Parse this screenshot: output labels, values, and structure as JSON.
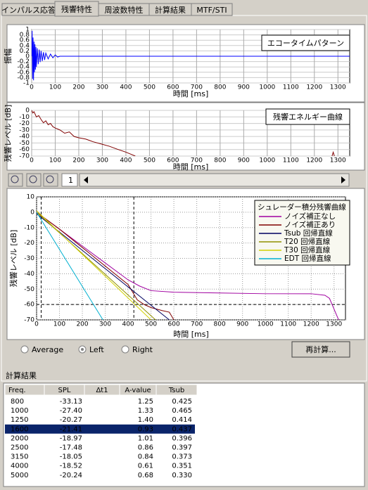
{
  "tabs": [
    "インパルス応答",
    "残響特性",
    "周波数特性",
    "計算結果",
    "MTF/STI"
  ],
  "chart_data": [
    {
      "type": "line",
      "title": "エコータイムパターン",
      "xlabel": "時間 [ms]",
      "ylabel": "振幅",
      "xlim": [
        0,
        1350
      ],
      "xticks": [
        0,
        100,
        200,
        300,
        400,
        500,
        600,
        700,
        800,
        900,
        1000,
        1100,
        1200,
        1300
      ],
      "ylim": [
        -1,
        1
      ],
      "yticks": [
        1,
        0.8,
        0.6,
        0.4,
        0.2,
        0,
        -0.2,
        -0.4,
        -0.6,
        -0.8,
        -1
      ],
      "grid": true,
      "series": [
        {
          "color": "#0000ff",
          "x": [
            0,
            2,
            4,
            6,
            8,
            10,
            12,
            14,
            16,
            18,
            20,
            24,
            28,
            32,
            36,
            40,
            45,
            50,
            55,
            60,
            70,
            80,
            90,
            100,
            110,
            120,
            1350
          ],
          "values": [
            0,
            0.95,
            -0.85,
            0.7,
            -0.9,
            0.55,
            -0.6,
            0.45,
            -0.5,
            0.35,
            -0.4,
            0.3,
            -0.3,
            0.25,
            -0.22,
            0.2,
            -0.18,
            0.15,
            -0.14,
            0.12,
            -0.1,
            0.08,
            -0.06,
            0.05,
            -0.03,
            0,
            0
          ]
        }
      ]
    },
    {
      "type": "line",
      "title": "残響エネルギー曲線",
      "xlabel": "時間 [ms]",
      "ylabel": "残響レベル [dB]",
      "xlim": [
        0,
        1350
      ],
      "xticks": [
        0,
        100,
        200,
        300,
        400,
        500,
        600,
        700,
        800,
        900,
        1000,
        1100,
        1200,
        1300
      ],
      "ylim": [
        -70,
        0
      ],
      "yticks": [
        0,
        -10,
        -20,
        -30,
        -40,
        -50,
        -60,
        -70
      ],
      "grid": true,
      "series": [
        {
          "color": "#800000",
          "x": [
            0,
            5,
            10,
            20,
            30,
            40,
            50,
            60,
            70,
            80,
            90,
            100,
            120,
            140,
            160,
            180,
            200,
            230,
            260,
            300,
            330,
            360,
            400,
            420,
            440,
            860,
            1275,
            1280,
            1285
          ],
          "values": [
            0,
            -4,
            -2,
            -10,
            -8,
            -14,
            -19,
            -16,
            -22,
            -20,
            -25,
            -27,
            -30,
            -35,
            -33,
            -40,
            -42,
            -44,
            -48,
            -52,
            -55,
            -59,
            -64,
            -67,
            -70,
            null,
            -70,
            -64,
            -70
          ]
        }
      ]
    },
    {
      "type": "line",
      "xlabel": "時間 [ms]",
      "ylabel": "残響レベル [dB]",
      "xlim": [
        0,
        1350
      ],
      "xticks": [
        0,
        100,
        200,
        300,
        400,
        500,
        600,
        700,
        800,
        900,
        1000,
        1100,
        1200,
        1300
      ],
      "ylim": [
        -70,
        10
      ],
      "yticks": [
        10,
        0,
        -10,
        -20,
        -30,
        -40,
        -50,
        -60,
        -70
      ],
      "grid": true,
      "legend_title": "シュレーダー積分残響曲線",
      "ref_lines": {
        "x": [
          20,
          425
        ],
        "y": [
          -60
        ]
      },
      "series": [
        {
          "name": "ノイズ補正なし",
          "color": "#a000a0",
          "x": [
            0,
            100,
            200,
            300,
            400,
            450,
            500,
            600,
            800,
            1000,
            1200,
            1260,
            1280,
            1300,
            1320
          ],
          "values": [
            0,
            -11,
            -22,
            -33,
            -44,
            -48,
            -51,
            -52,
            -52.5,
            -53,
            -53,
            -54,
            -56,
            -63,
            -70
          ]
        },
        {
          "name": "ノイズ補正あり",
          "color": "#800000",
          "x": [
            0,
            100,
            200,
            300,
            400,
            420,
            440,
            470,
            500,
            550,
            580,
            600
          ],
          "values": [
            0,
            -11,
            -23,
            -35,
            -47,
            -52,
            -57,
            -60,
            -62,
            -64,
            -65,
            -70
          ]
        },
        {
          "name": "Tsub 回帰直線",
          "color": "#000060",
          "x": [
            0,
            580
          ],
          "values": [
            -1,
            -70
          ]
        },
        {
          "name": "T20 回帰直線",
          "color": "#909000",
          "x": [
            0,
            520
          ],
          "values": [
            0,
            -70
          ]
        },
        {
          "name": "T30 回帰直線",
          "color": "#d0d000",
          "x": [
            0,
            500
          ],
          "values": [
            1,
            -70
          ]
        },
        {
          "name": "EDT 回帰直線",
          "color": "#00b0d0",
          "x": [
            0,
            290
          ],
          "values": [
            0,
            -70
          ]
        }
      ]
    }
  ],
  "page_number": "1",
  "channels": {
    "options": [
      "Average",
      "Left",
      "Right"
    ],
    "selected": 1
  },
  "recalc_button": "再計算...",
  "results": {
    "title": "計算結果",
    "columns": [
      "Freq.",
      "SPL",
      "Δt1",
      "A-value",
      "Tsub"
    ],
    "selected_row": 3,
    "rows": [
      {
        "freq": "800",
        "spl": "-33.13",
        "a_value": "1.25",
        "tsub": "0.425"
      },
      {
        "freq": "1000",
        "spl": "-27.40",
        "a_value": "1.33",
        "tsub": "0.465"
      },
      {
        "freq": "1250",
        "spl": "-20.27",
        "a_value": "1.40",
        "tsub": "0.414"
      },
      {
        "freq": "1600",
        "spl": "-21.41",
        "a_value": "0.93",
        "tsub": "0.437"
      },
      {
        "freq": "2000",
        "spl": "-18.97",
        "a_value": "1.01",
        "tsub": "0.396"
      },
      {
        "freq": "2500",
        "spl": "-17.48",
        "a_value": "0.86",
        "tsub": "0.397"
      },
      {
        "freq": "3150",
        "spl": "-18.05",
        "a_value": "0.84",
        "tsub": "0.373"
      },
      {
        "freq": "4000",
        "spl": "-18.52",
        "a_value": "0.61",
        "tsub": "0.351"
      },
      {
        "freq": "5000",
        "spl": "-20.24",
        "a_value": "0.68",
        "tsub": "0.330"
      }
    ]
  }
}
